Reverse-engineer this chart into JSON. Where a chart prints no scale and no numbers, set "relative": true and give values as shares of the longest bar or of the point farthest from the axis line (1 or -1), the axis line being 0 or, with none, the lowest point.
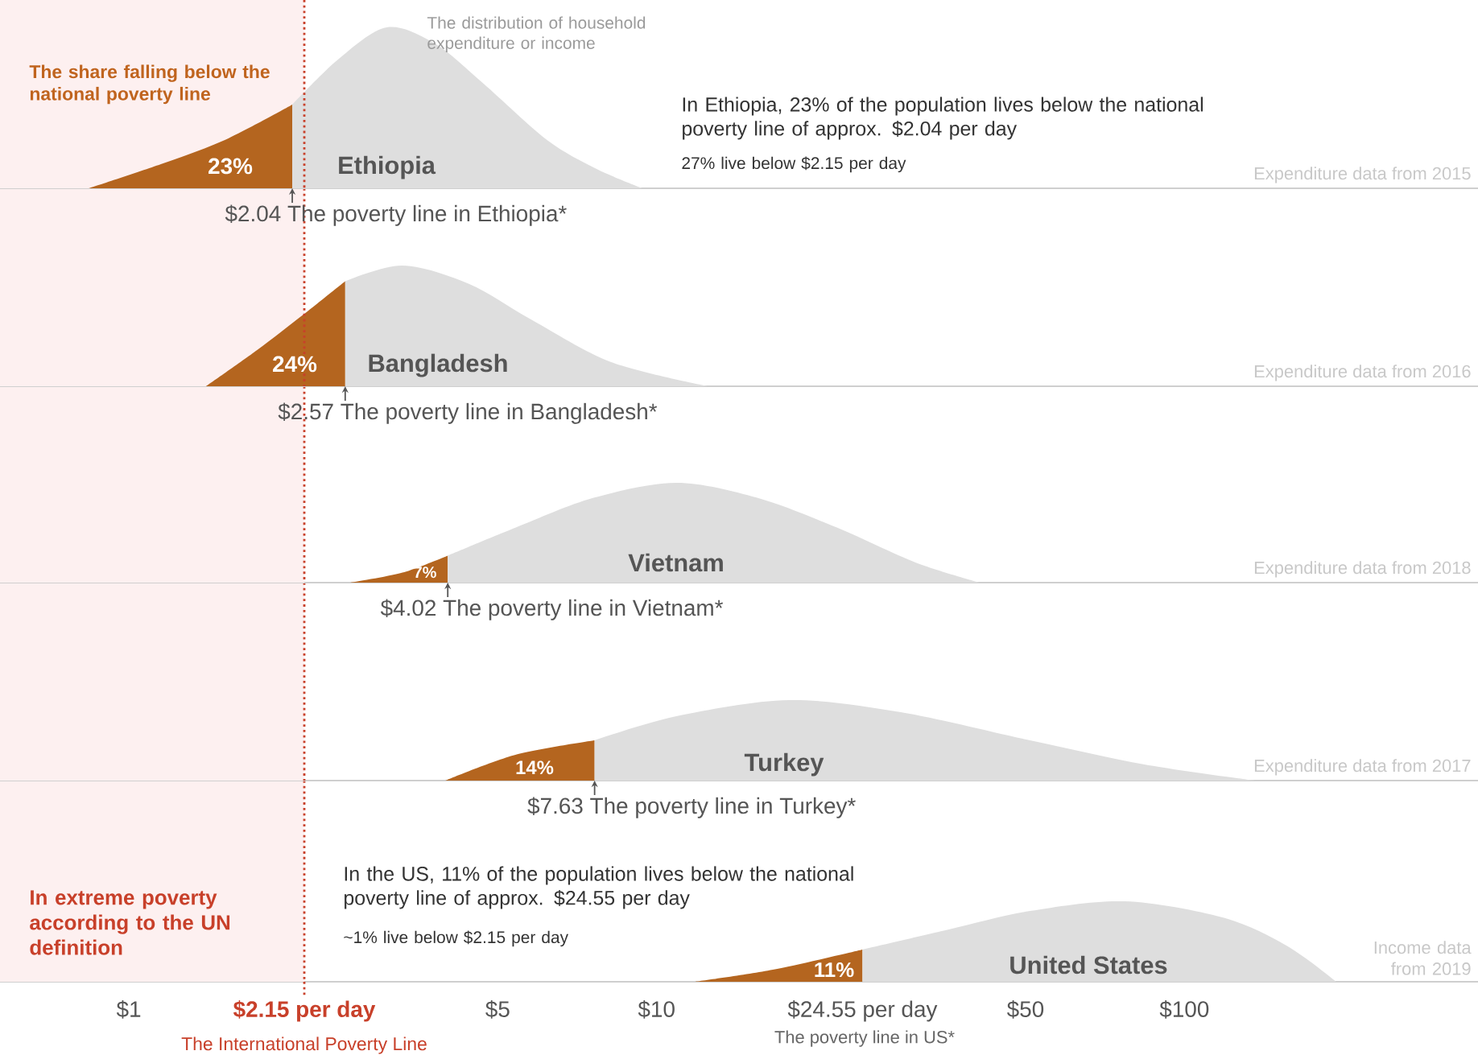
{
  "chart_data": [
    {
      "type": "area",
      "relative": true,
      "log": "x",
      "xlim": [
        0.57,
        360
      ],
      "tick_labels": false,
      "series": [
        {
          "color": "#b4651f",
          "x": [
            0.84,
            1.15,
            1.52,
            2.04
          ],
          "values": [
            0,
            0.15,
            0.3,
            0.52
          ]
        },
        {
          "color": "#dedede",
          "x": [
            2.04,
            2.49,
            3.08,
            3.8,
            4.7,
            6.2,
            7.7,
            9.4
          ],
          "values": [
            0.52,
            0.8,
            1,
            0.9,
            0.65,
            0.3,
            0.12,
            0
          ]
        }
      ],
      "ref_lines": [
        {
          "axis": "x",
          "value": 2.15,
          "color": "#c8402a",
          "line_style": "dotted"
        }
      ],
      "bands": [
        {
          "axis": "x",
          "from": 0.57,
          "to": 2.15,
          "color": "#fdf0f0"
        }
      ],
      "annotations": [
        "23%",
        "Ethiopia",
        {
          "text": "$2.04 The poverty line in Ethiopia*",
          "x": 2.04,
          "y": 0
        },
        "Expenditure data from 2015",
        "The distribution of household expenditure or income",
        "The share falling below the national poverty line",
        "In Ethiopia, 23% of the population lives below the national poverty line of approx. $2.04 per day",
        "27% live below $2.15 per day"
      ]
    },
    {
      "type": "area",
      "relative": true,
      "log": "x",
      "xlim": [
        0.57,
        360
      ],
      "tick_labels": false,
      "series": [
        {
          "color": "#b4651f",
          "x": [
            1.4,
            1.75,
            2.15,
            2.57
          ],
          "values": [
            0,
            0.3,
            0.6,
            0.87
          ]
        },
        {
          "color": "#dedede",
          "x": [
            2.57,
            3.3,
            4.4,
            5.8,
            8.2,
            12.5
          ],
          "values": [
            0.87,
            1,
            0.85,
            0.55,
            0.2,
            0
          ]
        }
      ],
      "ref_lines": [
        {
          "axis": "x",
          "value": 2.15,
          "color": "#c8402a",
          "line_style": "dotted"
        }
      ],
      "bands": [
        {
          "axis": "x",
          "from": 0.57,
          "to": 2.15,
          "color": "#fdf0f0"
        }
      ],
      "annotations": [
        "24%",
        "Bangladesh",
        {
          "text": "$2.57 The poverty line in Bangladesh*",
          "x": 2.57,
          "y": 0
        },
        "Expenditure data from 2016"
      ]
    },
    {
      "type": "area",
      "relative": true,
      "log": "x",
      "xlim": [
        0.57,
        360
      ],
      "tick_labels": false,
      "series": [
        {
          "color": "#b4651f",
          "x": [
            2.63,
            3.3,
            4.02
          ],
          "values": [
            0,
            0.1,
            0.27
          ]
        },
        {
          "color": "#dedede",
          "x": [
            4.02,
            5.4,
            7.6,
            10.9,
            15.5,
            22,
            31,
            41
          ],
          "values": [
            0.27,
            0.55,
            0.85,
            1,
            0.85,
            0.55,
            0.2,
            0
          ]
        }
      ],
      "ref_lines": [
        {
          "axis": "x",
          "value": 2.15,
          "color": "#c8402a",
          "line_style": "dotted"
        }
      ],
      "bands": [
        {
          "axis": "x",
          "from": 0.57,
          "to": 2.15,
          "color": "#fdf0f0"
        }
      ],
      "annotations": [
        "7%",
        "Vietnam",
        {
          "text": "$4.02 The poverty line in Vietnam*",
          "x": 4.02,
          "y": 0
        },
        "Expenditure data from 2018"
      ]
    },
    {
      "type": "area",
      "relative": true,
      "log": "x",
      "xlim": [
        0.57,
        360
      ],
      "tick_labels": false,
      "series": [
        {
          "color": "#b4651f",
          "x": [
            3.98,
            5.4,
            7.63
          ],
          "values": [
            0,
            0.32,
            0.5
          ]
        },
        {
          "color": "#dedede",
          "x": [
            7.63,
            10.9,
            17.8,
            29,
            51,
            84,
            136
          ],
          "values": [
            0.5,
            0.8,
            1,
            0.85,
            0.5,
            0.2,
            0
          ]
        }
      ],
      "ref_lines": [
        {
          "axis": "x",
          "value": 2.15,
          "color": "#c8402a",
          "line_style": "dotted"
        }
      ],
      "bands": [
        {
          "axis": "x",
          "from": 0.57,
          "to": 2.15,
          "color": "#fdf0f0"
        }
      ],
      "annotations": [
        "14%",
        "Turkey",
        {
          "text": "$7.63 The poverty line in Turkey*",
          "x": 7.63,
          "y": 0
        },
        "Expenditure data from 2017"
      ]
    },
    {
      "type": "area",
      "relative": true,
      "log": "x",
      "xlim": [
        0.57,
        360
      ],
      "tick_labels": "x",
      "xticks": [
        {
          "value": 1,
          "label": "$1"
        },
        {
          "value": 2.15,
          "label": "$2.15 per day"
        },
        {
          "value": 5,
          "label": "$5"
        },
        {
          "value": 10,
          "label": "$10"
        },
        {
          "value": 24.55,
          "label": "$24.55 per day"
        },
        {
          "value": 50,
          "label": "$50"
        },
        {
          "value": 100,
          "label": "$100"
        }
      ],
      "series": [
        {
          "color": "#b4651f",
          "x": [
            11.8,
            16.6,
            24.55
          ],
          "values": [
            0,
            0.15,
            0.4
          ]
        },
        {
          "color": "#dedede",
          "x": [
            24.55,
            35.8,
            51,
            77,
            118,
            156,
            194
          ],
          "values": [
            0.4,
            0.65,
            0.88,
            1,
            0.8,
            0.45,
            0
          ]
        }
      ],
      "ref_lines": [
        {
          "axis": "x",
          "value": 2.15,
          "color": "#c8402a",
          "line_style": "dotted",
          "label": "The International Poverty Line"
        }
      ],
      "bands": [
        {
          "axis": "x",
          "from": 0.57,
          "to": 2.15,
          "color": "#fdf0f0",
          "label": "In extreme poverty according to the UN definition"
        }
      ],
      "annotations": [
        "11%",
        "United States",
        "The poverty line in US*",
        "Income data from 2019",
        "In the US, 11% of the population lives below the national poverty line of approx. $24.55 per day",
        "~1% live below $2.15 per day"
      ]
    }
  ]
}
